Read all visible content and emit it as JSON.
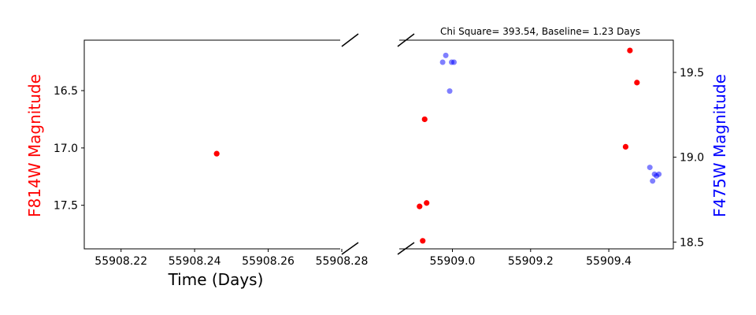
{
  "chart_data": {
    "type": "scatter",
    "title": "Chi Square= 393.54, Baseline= 1.23 Days",
    "xlabel": "Time (Days)",
    "ylabel_left": "F814W Magnitude",
    "ylabel_right": "F475W Magnitude",
    "broken_x_axis": true,
    "y_inverted": true,
    "left_panel": {
      "xlim": [
        55908.21,
        55908.28
      ],
      "ylim": [
        17.88,
        16.06
      ],
      "xticks": [
        55908.22,
        55908.24,
        55908.26,
        55908.28
      ],
      "xtick_labels": [
        "55908.22",
        "55908.24",
        "55908.26",
        "55908.28"
      ],
      "yticks": [
        16.5,
        17.0,
        17.5
      ],
      "ytick_labels": [
        "16.5",
        "17.0",
        "17.5"
      ]
    },
    "right_panel": {
      "xlim": [
        55908.86,
        55909.565
      ],
      "xticks": [
        55909.0,
        55909.2,
        55909.4
      ],
      "xtick_labels": [
        "55909.0",
        "55909.2",
        "55909.4"
      ],
      "ylim_left": [
        17.88,
        16.06
      ],
      "ylim_right": [
        19.69,
        18.46
      ],
      "yticks_right": [
        18.5,
        19.0,
        19.5
      ],
      "ytick_labels_right": [
        "18.5",
        "19.0",
        "19.5"
      ]
    },
    "series": [
      {
        "name": "F814W",
        "color": "#ff0000",
        "axis": "left",
        "x": [
          55908.246,
          55908.916,
          55908.924,
          55908.929,
          55908.934,
          55909.443,
          55909.454,
          55909.472
        ],
        "y": [
          17.05,
          17.51,
          17.81,
          16.75,
          17.48,
          16.99,
          16.15,
          16.43
        ]
      },
      {
        "name": "F475W",
        "color": "#0000ff",
        "axis": "right",
        "x": [
          55908.975,
          55908.983,
          55908.993,
          55908.998,
          55909.004,
          55909.505,
          55909.512,
          55909.517,
          55909.522,
          55909.528
        ],
        "y": [
          19.56,
          19.6,
          19.39,
          19.56,
          19.56,
          18.94,
          18.86,
          18.9,
          18.89,
          18.9
        ]
      }
    ]
  }
}
